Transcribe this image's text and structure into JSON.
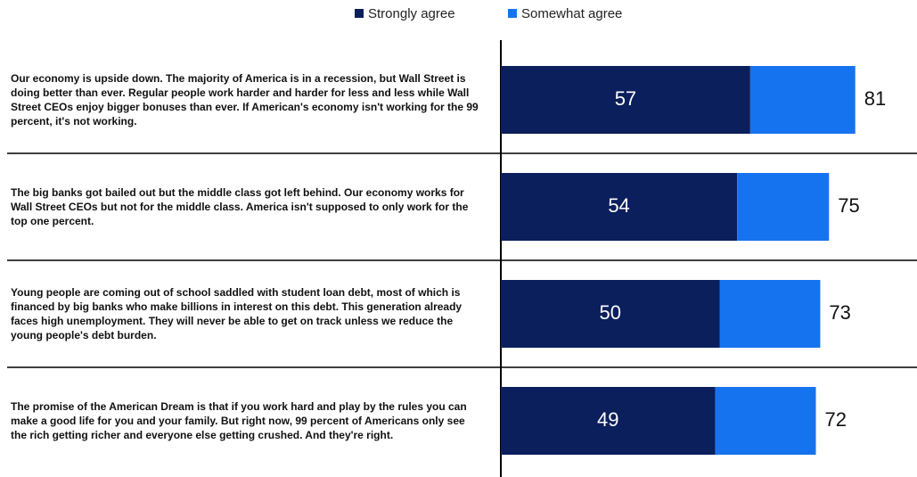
{
  "chart_data": {
    "type": "stacked_hbar",
    "categories": [
      "Our economy is upside down. The majority of America is in a recession, but Wall Street is doing better than ever. Regular people work harder and harder for less and less while Wall Street CEOs enjoy bigger bonuses than ever. If American's economy isn't working for the 99 percent, it's not working.",
      "The big banks got bailed out but the middle class got left behind. Our economy works for Wall Street CEOs but not for the middle class. America isn't supposed to only work for the top one percent.",
      "Young people are coming out of school saddled with student loan debt, most of which is financed by big banks who make billions in interest on this debt. This generation already faces high unemployment. They will never be able to get on track unless we reduce the young people's debt burden.",
      "The promise of the American Dream is that if you work hard and play by the rules you can make a good life for you and your family. But right now, 99 percent of Americans only see the rich getting richer and everyone else getting crushed. And they're right."
    ],
    "series": [
      {
        "name": "Strongly agree",
        "color": "#0b1f5c",
        "values": [
          57,
          54,
          50,
          49
        ]
      },
      {
        "name": "Somewhat agree",
        "color": "#1673ef",
        "values": [
          24,
          21,
          23,
          23
        ]
      }
    ],
    "totals": [
      81,
      75,
      73,
      72
    ],
    "xlim": [
      0,
      100
    ],
    "legend": "top"
  }
}
